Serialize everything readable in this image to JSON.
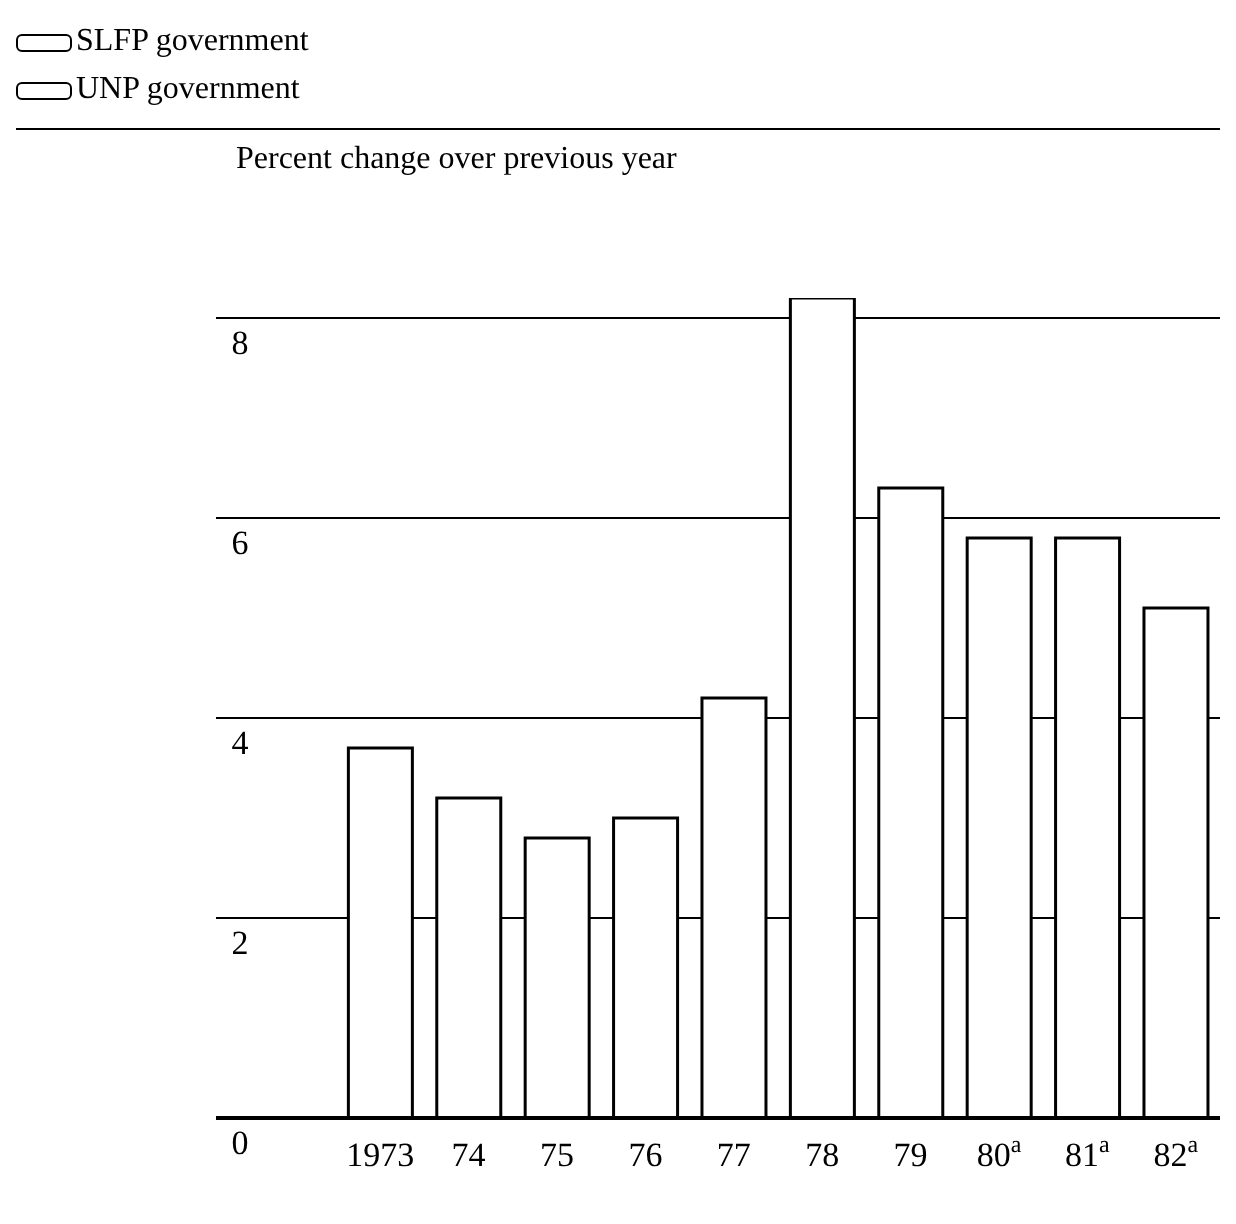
{
  "chart_data": {
    "type": "bar",
    "ylabel": "Percent change over previous year",
    "categories": [
      "1973",
      "74",
      "75",
      "76",
      "77",
      "78",
      "79",
      "80$^{a}$",
      "81$^{a}$",
      "82$^{a}$"
    ],
    "series": [
      {
        "name": "SLFP government",
        "color": "#ffffff",
        "values": [
          3.7,
          3.2,
          2.8,
          3.0,
          4.2,
          null,
          null,
          null,
          null,
          null
        ]
      },
      {
        "name": "UNP government",
        "color": "#ffffff",
        "values": [
          null,
          null,
          null,
          null,
          null,
          8.2,
          6.3,
          5.8,
          5.8,
          5.1
        ]
      }
    ],
    "ylim": [
      0,
      8.2
    ],
    "yticks": [
      0,
      2,
      4,
      6,
      8
    ],
    "grid": "y",
    "legend": "top left"
  }
}
